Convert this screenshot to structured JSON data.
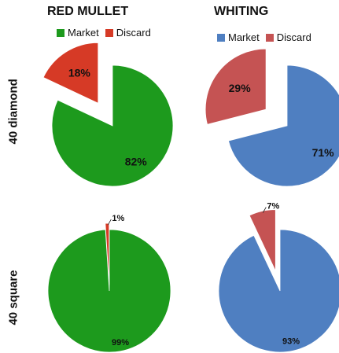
{
  "columns": [
    "RED MULLET",
    "WHITING"
  ],
  "rows": [
    "40 diamond",
    "40 square"
  ],
  "legends": [
    {
      "items": [
        {
          "label": "Market",
          "color": "#1d9a1d"
        },
        {
          "label": "Discard",
          "color": "#d63a26"
        }
      ]
    },
    {
      "items": [
        {
          "label": "Market",
          "color": "#4f7fc1"
        },
        {
          "label": "Discard",
          "color": "#c55353"
        }
      ]
    }
  ],
  "chart_data": [
    {
      "type": "pie",
      "title": "RED MULLET",
      "subtitle": "40 diamond",
      "slices": [
        {
          "label": "Market",
          "value": 82,
          "text": "82%",
          "color": "#1d9a1d"
        },
        {
          "label": "Discard",
          "value": 18,
          "text": "18%",
          "color": "#d63a26"
        }
      ]
    },
    {
      "type": "pie",
      "title": "WHITING",
      "subtitle": "40 diamond",
      "slices": [
        {
          "label": "Market",
          "value": 71,
          "text": "71%",
          "color": "#4f7fc1"
        },
        {
          "label": "Discard",
          "value": 29,
          "text": "29%",
          "color": "#c55353"
        }
      ]
    },
    {
      "type": "pie",
      "title": "RED MULLET",
      "subtitle": "40 square",
      "slices": [
        {
          "label": "Market",
          "value": 99,
          "text": "99%",
          "color": "#1d9a1d"
        },
        {
          "label": "Discard",
          "value": 1,
          "text": "1%",
          "color": "#d63a26"
        }
      ]
    },
    {
      "type": "pie",
      "title": "WHITING",
      "subtitle": "40 square",
      "slices": [
        {
          "label": "Market",
          "value": 93,
          "text": "93%",
          "color": "#4f7fc1"
        },
        {
          "label": "Discard",
          "value": 7,
          "text": "7%",
          "color": "#c55353"
        }
      ]
    }
  ]
}
